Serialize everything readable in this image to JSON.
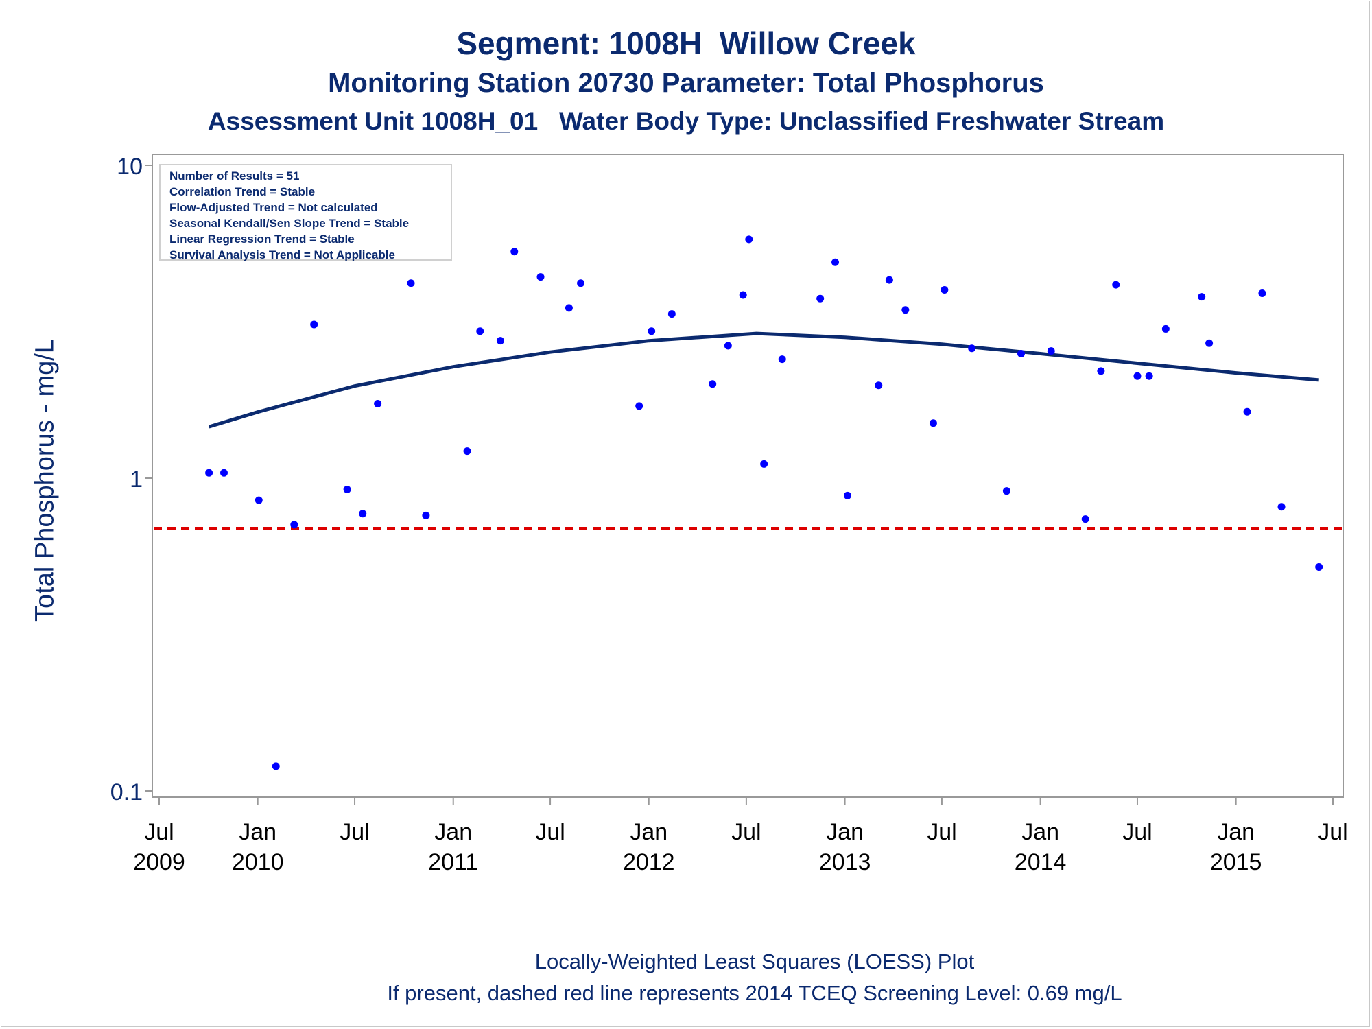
{
  "titles": {
    "line1": "Segment: 1008H  Willow Creek",
    "line2": "Monitoring Station 20730 Parameter: Total Phosphorus",
    "line3": "Assessment Unit 1008H_01   Water Body Type: Unclassified Freshwater Stream"
  },
  "stats_box": [
    "Number of Results = 51",
    "Correlation Trend = Stable",
    "Flow-Adjusted Trend = Not calculated",
    "Seasonal Kendall/Sen Slope Trend = Stable",
    "Linear Regression Trend = Stable",
    "Survival Analysis Trend = Not Applicable"
  ],
  "footnotes": {
    "line1": "Locally-Weighted Least Squares (LOESS) Plot",
    "line2": "If present, dashed red line represents 2014 TCEQ Screening Level: 0.69 mg/L"
  },
  "colors": {
    "text": "#0b2a6f",
    "points": "#0000ff",
    "loess": "#0b2a6f",
    "screening": "#dd0000",
    "frame": "#999999"
  },
  "chart_data": {
    "type": "scatter",
    "ylabel": "Total Phosphorus - mg/L",
    "xlabel": "",
    "y_scale": "log",
    "ylim": [
      0.1,
      10
    ],
    "xlim": [
      "2009-07-01",
      "2015-07-01"
    ],
    "y_ticks": [
      {
        "value": 0.1,
        "label": "0.1"
      },
      {
        "value": 1,
        "label": "1"
      },
      {
        "value": 10,
        "label": "10"
      }
    ],
    "x_ticks": [
      {
        "date": "2009-07-01",
        "month": "Jul",
        "year": "2009"
      },
      {
        "date": "2010-01-01",
        "month": "Jan",
        "year": "2010"
      },
      {
        "date": "2010-07-01",
        "month": "Jul",
        "year": ""
      },
      {
        "date": "2011-01-01",
        "month": "Jan",
        "year": "2011"
      },
      {
        "date": "2011-07-01",
        "month": "Jul",
        "year": ""
      },
      {
        "date": "2012-01-01",
        "month": "Jan",
        "year": "2012"
      },
      {
        "date": "2012-07-01",
        "month": "Jul",
        "year": ""
      },
      {
        "date": "2013-01-01",
        "month": "Jan",
        "year": "2013"
      },
      {
        "date": "2013-07-01",
        "month": "Jul",
        "year": ""
      },
      {
        "date": "2014-01-01",
        "month": "Jan",
        "year": "2014"
      },
      {
        "date": "2014-07-01",
        "month": "Jul",
        "year": ""
      },
      {
        "date": "2015-01-01",
        "month": "Jan",
        "year": "2015"
      },
      {
        "date": "2015-07-01",
        "month": "Jul",
        "year": ""
      }
    ],
    "screening_level": 0.69,
    "points": [
      {
        "x": "2009-10-02",
        "y": 1.04
      },
      {
        "x": "2009-10-30",
        "y": 1.04
      },
      {
        "x": "2010-01-03",
        "y": 0.85
      },
      {
        "x": "2010-02-04",
        "y": 0.12
      },
      {
        "x": "2010-03-10",
        "y": 0.71
      },
      {
        "x": "2010-04-16",
        "y": 3.1
      },
      {
        "x": "2010-06-17",
        "y": 0.92
      },
      {
        "x": "2010-07-16",
        "y": 0.77
      },
      {
        "x": "2010-08-13",
        "y": 1.73
      },
      {
        "x": "2010-10-14",
        "y": 4.2
      },
      {
        "x": "2010-11-11",
        "y": 0.76
      },
      {
        "x": "2011-01-27",
        "y": 1.22
      },
      {
        "x": "2011-02-20",
        "y": 2.95
      },
      {
        "x": "2011-03-30",
        "y": 2.75
      },
      {
        "x": "2011-04-25",
        "y": 5.3
      },
      {
        "x": "2011-06-13",
        "y": 4.4
      },
      {
        "x": "2011-08-05",
        "y": 3.5
      },
      {
        "x": "2011-08-27",
        "y": 4.2
      },
      {
        "x": "2011-12-14",
        "y": 1.7
      },
      {
        "x": "2012-01-06",
        "y": 2.95
      },
      {
        "x": "2012-02-13",
        "y": 3.35
      },
      {
        "x": "2012-04-29",
        "y": 2.0
      },
      {
        "x": "2012-05-28",
        "y": 2.65
      },
      {
        "x": "2012-06-25",
        "y": 3.85
      },
      {
        "x": "2012-07-06",
        "y": 5.8
      },
      {
        "x": "2012-08-03",
        "y": 1.11
      },
      {
        "x": "2012-09-06",
        "y": 2.4
      },
      {
        "x": "2012-11-16",
        "y": 3.75
      },
      {
        "x": "2012-12-14",
        "y": 4.9
      },
      {
        "x": "2013-01-06",
        "y": 0.88
      },
      {
        "x": "2013-03-05",
        "y": 1.98
      },
      {
        "x": "2013-03-25",
        "y": 4.3
      },
      {
        "x": "2013-04-24",
        "y": 3.45
      },
      {
        "x": "2013-06-15",
        "y": 1.5
      },
      {
        "x": "2013-07-06",
        "y": 4.0
      },
      {
        "x": "2013-08-26",
        "y": 2.6
      },
      {
        "x": "2013-10-30",
        "y": 0.91
      },
      {
        "x": "2013-11-26",
        "y": 2.5
      },
      {
        "x": "2014-01-21",
        "y": 2.55
      },
      {
        "x": "2014-03-26",
        "y": 0.74
      },
      {
        "x": "2014-04-24",
        "y": 2.2
      },
      {
        "x": "2014-05-22",
        "y": 4.15
      },
      {
        "x": "2014-07-01",
        "y": 2.12
      },
      {
        "x": "2014-07-23",
        "y": 2.12
      },
      {
        "x": "2014-08-23",
        "y": 3.0
      },
      {
        "x": "2014-10-29",
        "y": 3.8
      },
      {
        "x": "2014-11-12",
        "y": 2.7
      },
      {
        "x": "2015-01-22",
        "y": 1.63
      },
      {
        "x": "2015-02-19",
        "y": 3.9
      },
      {
        "x": "2015-03-27",
        "y": 0.81
      },
      {
        "x": "2015-06-05",
        "y": 0.52
      }
    ],
    "loess": [
      {
        "x": "2009-10-02",
        "y": 1.46
      },
      {
        "x": "2010-01-03",
        "y": 1.63
      },
      {
        "x": "2010-07-01",
        "y": 1.97
      },
      {
        "x": "2011-01-01",
        "y": 2.27
      },
      {
        "x": "2011-07-01",
        "y": 2.53
      },
      {
        "x": "2012-01-01",
        "y": 2.75
      },
      {
        "x": "2012-07-20",
        "y": 2.9
      },
      {
        "x": "2013-01-01",
        "y": 2.82
      },
      {
        "x": "2013-07-01",
        "y": 2.68
      },
      {
        "x": "2014-01-01",
        "y": 2.5
      },
      {
        "x": "2014-07-01",
        "y": 2.33
      },
      {
        "x": "2015-01-01",
        "y": 2.17
      },
      {
        "x": "2015-06-05",
        "y": 2.06
      }
    ]
  }
}
